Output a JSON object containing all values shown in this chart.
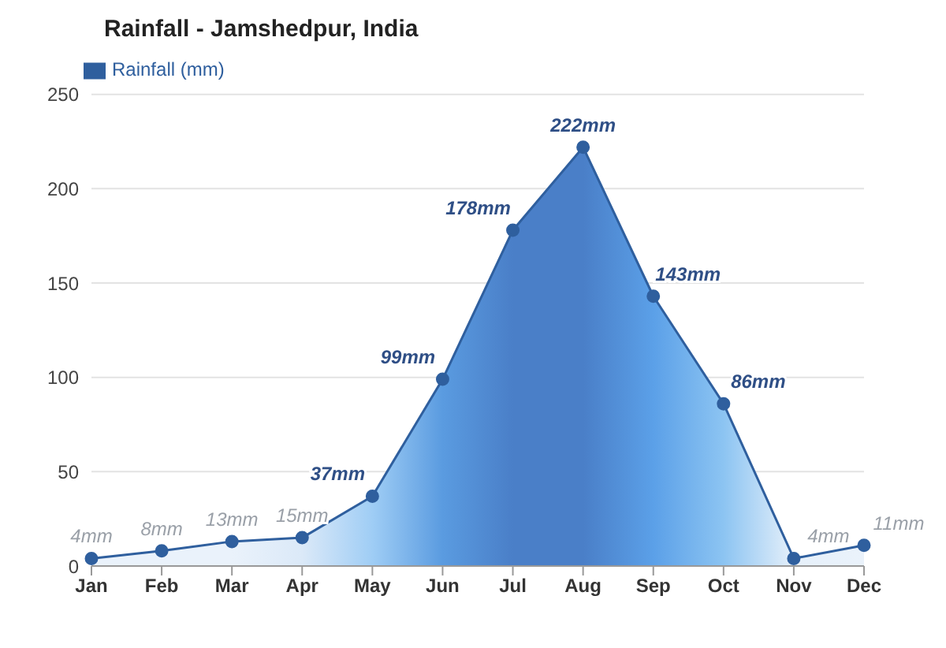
{
  "chart_data": {
    "type": "area",
    "title": "Rainfall - Jamshedpur, India",
    "categories": [
      "Jan",
      "Feb",
      "Mar",
      "Apr",
      "May",
      "Jun",
      "Jul",
      "Aug",
      "Sep",
      "Oct",
      "Nov",
      "Dec"
    ],
    "series": [
      {
        "name": "Rainfall (mm)",
        "color": "#2f5f9e",
        "values": [
          4,
          8,
          13,
          15,
          37,
          99,
          178,
          222,
          143,
          86,
          4,
          11
        ],
        "colors": [
          "#eaf2fb",
          "#eaf2fb",
          "#eaf2fb",
          "#dbe9f8",
          "#9fcdf5",
          "#5a9be0",
          "#4a7fc8",
          "#4a7fc8",
          "#5ba0e8",
          "#8cc4f2",
          "#e6f0fa",
          "#eaf2fb"
        ],
        "value_labels": [
          "4mm",
          "8mm",
          "13mm",
          "15mm",
          "37mm",
          "99mm",
          "178mm",
          "222mm",
          "143mm",
          "86mm",
          "4mm",
          "11mm"
        ]
      }
    ],
    "ylim": [
      0,
      250
    ],
    "yticks": [
      0,
      50,
      100,
      150,
      200,
      250
    ],
    "grid": "y",
    "legend": "top left",
    "marker": "circle",
    "line_style": "solid"
  }
}
